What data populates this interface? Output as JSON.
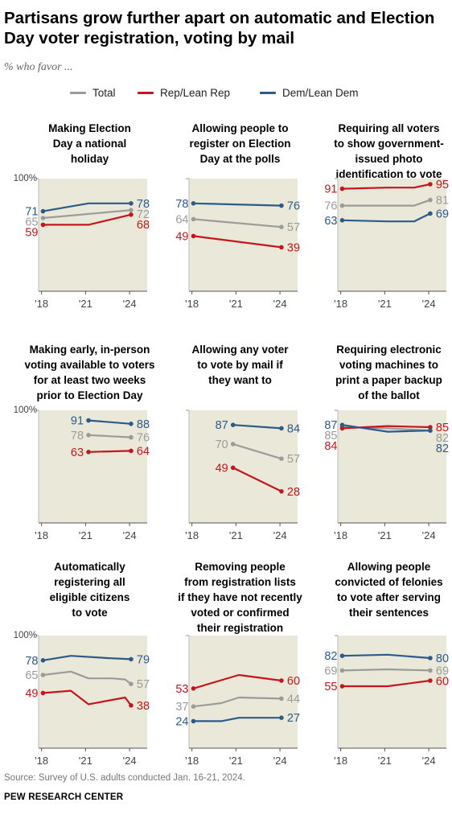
{
  "title": "Partisans grow further apart on automatic and Election Day voter registration, voting by mail",
  "subtitle": "% who favor ...",
  "legend": [
    {
      "label": "Total",
      "color": "#9b9b9b"
    },
    {
      "label": "Rep/Lean Rep",
      "color": "#c4161c"
    },
    {
      "label": "Dem/Lean Dem",
      "color": "#2c5b8a"
    }
  ],
  "source": "Source: Survey of U.S. adults conducted Jan. 16-21, 2024.",
  "brand": "PEW RESEARCH CENTER",
  "colors": {
    "total": "#9b9b9b",
    "rep": "#c4161c",
    "dem": "#2c5b8a",
    "plot_bg": "#eae8d8",
    "axis": "#555555",
    "tick_text": "#444444"
  },
  "chart_data": [
    {
      "type": "line",
      "title": "Making Election Day a national holiday",
      "title_lines": [
        "Making Election",
        "Day a national",
        "holiday"
      ],
      "ylim": [
        0,
        100
      ],
      "ytick_label": "100%",
      "xticks": [
        "'18",
        "'21",
        "'24"
      ],
      "series": [
        {
          "name": "Dem/Lean Dem",
          "key": "dem",
          "x": [
            2018.1,
            2021.2,
            2024.1
          ],
          "values": [
            71,
            78,
            78
          ]
        },
        {
          "name": "Total",
          "key": "total",
          "x": [
            2018.1,
            2024.1
          ],
          "values": [
            65,
            72
          ]
        },
        {
          "name": "Rep/Lean Rep",
          "key": "rep",
          "x": [
            2018.1,
            2021.2,
            2024.1
          ],
          "values": [
            59,
            59,
            68
          ]
        }
      ],
      "start_labels": {
        "dem": "71",
        "total": "65",
        "rep": "59"
      },
      "end_labels": {
        "dem": "78",
        "total": "72",
        "rep": "68"
      }
    },
    {
      "type": "line",
      "title": "Allowing people to register on Election Day at the polls",
      "title_lines": [
        "Allowing people to",
        "register on Election",
        "Day at the polls"
      ],
      "ylim": [
        0,
        100
      ],
      "ytick_label": "",
      "xticks": [
        "'18",
        "'21",
        "'24"
      ],
      "series": [
        {
          "name": "Dem/Lean Dem",
          "key": "dem",
          "x": [
            2018.1,
            2024.1
          ],
          "values": [
            78,
            76
          ]
        },
        {
          "name": "Total",
          "key": "total",
          "x": [
            2018.1,
            2024.1
          ],
          "values": [
            64,
            57
          ]
        },
        {
          "name": "Rep/Lean Rep",
          "key": "rep",
          "x": [
            2018.1,
            2024.1
          ],
          "values": [
            49,
            39
          ]
        }
      ],
      "start_labels": {
        "dem": "78",
        "total": "64",
        "rep": "49"
      },
      "end_labels": {
        "dem": "76",
        "total": "57",
        "rep": "39"
      }
    },
    {
      "type": "line",
      "title": "Requiring all voters to show government-issued photo identification to vote",
      "title_lines": [
        "Requiring all voters",
        "to show government-",
        "issued photo",
        "identification to vote"
      ],
      "ylim": [
        0,
        100
      ],
      "ytick_label": "",
      "xticks": [
        "'18",
        "'21",
        "'24"
      ],
      "series": [
        {
          "name": "Rep/Lean Rep",
          "key": "rep",
          "x": [
            2018.1,
            2021.2,
            2023.0,
            2024.1
          ],
          "values": [
            91,
            92,
            92,
            95
          ]
        },
        {
          "name": "Total",
          "key": "total",
          "x": [
            2018.1,
            2021.2,
            2023.0,
            2024.1
          ],
          "values": [
            76,
            76,
            76,
            81
          ]
        },
        {
          "name": "Dem/Lean Dem",
          "key": "dem",
          "x": [
            2018.1,
            2021.2,
            2023.0,
            2024.1
          ],
          "values": [
            63,
            62,
            62,
            69
          ]
        }
      ],
      "start_labels": {
        "rep": "91",
        "total": "76",
        "dem": "63"
      },
      "end_labels": {
        "rep": "95",
        "total": "81",
        "dem": "69"
      }
    },
    {
      "type": "line",
      "title": "Making early, in-person voting available to voters for at least two weeks prior to Election Day",
      "title_lines": [
        "Making early, in-person",
        "voting available to voters",
        "for at least two weeks",
        "prior to Election Day"
      ],
      "ylim": [
        0,
        100
      ],
      "ytick_label": "100%",
      "xticks": [
        "'18",
        "'21",
        "'24"
      ],
      "series": [
        {
          "name": "Dem/Lean Dem",
          "key": "dem",
          "x": [
            2021.2,
            2024.1
          ],
          "values": [
            91,
            88
          ]
        },
        {
          "name": "Total",
          "key": "total",
          "x": [
            2021.2,
            2024.1
          ],
          "values": [
            78,
            76
          ]
        },
        {
          "name": "Rep/Lean Rep",
          "key": "rep",
          "x": [
            2021.2,
            2024.1
          ],
          "values": [
            63,
            64
          ]
        }
      ],
      "start_labels": {
        "dem": "91",
        "total": "78",
        "rep": "63"
      },
      "end_labels": {
        "dem": "88",
        "total": "76",
        "rep": "64"
      }
    },
    {
      "type": "line",
      "title": "Allowing any voter to vote by mail if they want to",
      "title_lines": [
        "Allowing any voter",
        "to vote by mail if",
        "they want to"
      ],
      "ylim": [
        0,
        100
      ],
      "ytick_label": "",
      "xticks": [
        "'18",
        "'21",
        "'24"
      ],
      "series": [
        {
          "name": "Dem/Lean Dem",
          "key": "dem",
          "x": [
            2020.8,
            2024.1
          ],
          "values": [
            87,
            84
          ]
        },
        {
          "name": "Total",
          "key": "total",
          "x": [
            2020.8,
            2024.1
          ],
          "values": [
            70,
            57
          ]
        },
        {
          "name": "Rep/Lean Rep",
          "key": "rep",
          "x": [
            2020.8,
            2024.1
          ],
          "values": [
            49,
            28
          ]
        }
      ],
      "start_labels": {
        "dem": "87",
        "total": "70",
        "rep": "49"
      },
      "end_labels": {
        "dem": "84",
        "total": "57",
        "rep": "28"
      }
    },
    {
      "type": "line",
      "title": "Requiring electronic voting machines to print a paper backup of the ballot",
      "title_lines": [
        "Requiring electronic",
        "voting machines to",
        "print a paper backup",
        "of the ballot"
      ],
      "ylim": [
        0,
        100
      ],
      "ytick_label": "",
      "xticks": [
        "'18",
        "'21",
        "'24"
      ],
      "series": [
        {
          "name": "Total",
          "key": "total",
          "x": [
            2018.1,
            2021.2,
            2024.1
          ],
          "values": [
            85,
            84,
            82
          ]
        },
        {
          "name": "Rep/Lean Rep",
          "key": "rep",
          "x": [
            2018.1,
            2021.2,
            2024.1
          ],
          "values": [
            84,
            86,
            85
          ]
        },
        {
          "name": "Dem/Lean Dem",
          "key": "dem",
          "x": [
            2018.1,
            2021.2,
            2024.1
          ],
          "values": [
            87,
            81,
            82
          ]
        }
      ],
      "start_labels": {
        "dem": "87",
        "total": "85",
        "rep": "84"
      },
      "end_labels": {
        "rep": "85",
        "total": "82",
        "dem": "82"
      }
    },
    {
      "type": "line",
      "title": "Automatically registering all eligible citizens to vote",
      "title_lines": [
        "Automatically",
        "registering all",
        "eligible citizens",
        "to vote"
      ],
      "ylim": [
        0,
        100
      ],
      "ytick_label": "100%",
      "xticks": [
        "'18",
        "'21",
        "'24"
      ],
      "series": [
        {
          "name": "Dem/Lean Dem",
          "key": "dem",
          "x": [
            2018.1,
            2020.0,
            2022.5,
            2024.1
          ],
          "values": [
            78,
            82,
            80,
            79
          ]
        },
        {
          "name": "Total",
          "key": "total",
          "x": [
            2018.1,
            2020.0,
            2021.2,
            2022.8,
            2023.7,
            2024.1
          ],
          "values": [
            65,
            68,
            62,
            62,
            61,
            57
          ]
        },
        {
          "name": "Rep/Lean Rep",
          "key": "rep",
          "x": [
            2018.1,
            2020.0,
            2021.2,
            2023.7,
            2024.1
          ],
          "values": [
            49,
            51,
            39,
            45,
            38
          ]
        }
      ],
      "start_labels": {
        "dem": "78",
        "total": "65",
        "rep": "49"
      },
      "end_labels": {
        "dem": "79",
        "total": "57",
        "rep": "38"
      }
    },
    {
      "type": "line",
      "title": "Removing people from registration lists if they have not recently voted or confirmed their registration",
      "title_lines": [
        "Removing people",
        "from registration lists",
        "if they have not recently",
        "voted or confirmed",
        "their registration"
      ],
      "ylim": [
        0,
        100
      ],
      "ytick_label": "",
      "xticks": [
        "'18",
        "'21",
        "'24"
      ],
      "series": [
        {
          "name": "Rep/Lean Rep",
          "key": "rep",
          "x": [
            2018.1,
            2021.2,
            2024.1
          ],
          "values": [
            53,
            65,
            60
          ]
        },
        {
          "name": "Total",
          "key": "total",
          "x": [
            2018.1,
            2020.0,
            2021.2,
            2024.1
          ],
          "values": [
            37,
            40,
            45,
            44
          ]
        },
        {
          "name": "Dem/Lean Dem",
          "key": "dem",
          "x": [
            2018.1,
            2020.0,
            2021.2,
            2024.1
          ],
          "values": [
            24,
            24,
            27,
            27
          ]
        }
      ],
      "start_labels": {
        "rep": "53",
        "total": "37",
        "dem": "24"
      },
      "end_labels": {
        "rep": "60",
        "total": "44",
        "dem": "27"
      }
    },
    {
      "type": "line",
      "title": "Allowing people convicted of felonies to vote after serving their sentences",
      "title_lines": [
        "Allowing people",
        "convicted of felonies",
        "to vote after serving",
        "their sentences"
      ],
      "ylim": [
        0,
        100
      ],
      "ytick_label": "",
      "xticks": [
        "'18",
        "'21",
        "'24"
      ],
      "series": [
        {
          "name": "Dem/Lean Dem",
          "key": "dem",
          "x": [
            2018.1,
            2021.2,
            2024.1
          ],
          "values": [
            82,
            83,
            80
          ]
        },
        {
          "name": "Total",
          "key": "total",
          "x": [
            2018.1,
            2021.2,
            2024.1
          ],
          "values": [
            69,
            70,
            69
          ]
        },
        {
          "name": "Rep/Lean Rep",
          "key": "rep",
          "x": [
            2018.1,
            2021.2,
            2024.1
          ],
          "values": [
            55,
            55,
            60
          ]
        }
      ],
      "start_labels": {
        "dem": "82",
        "total": "69",
        "rep": "55"
      },
      "end_labels": {
        "dem": "80",
        "total": "69",
        "rep": "60"
      }
    }
  ]
}
